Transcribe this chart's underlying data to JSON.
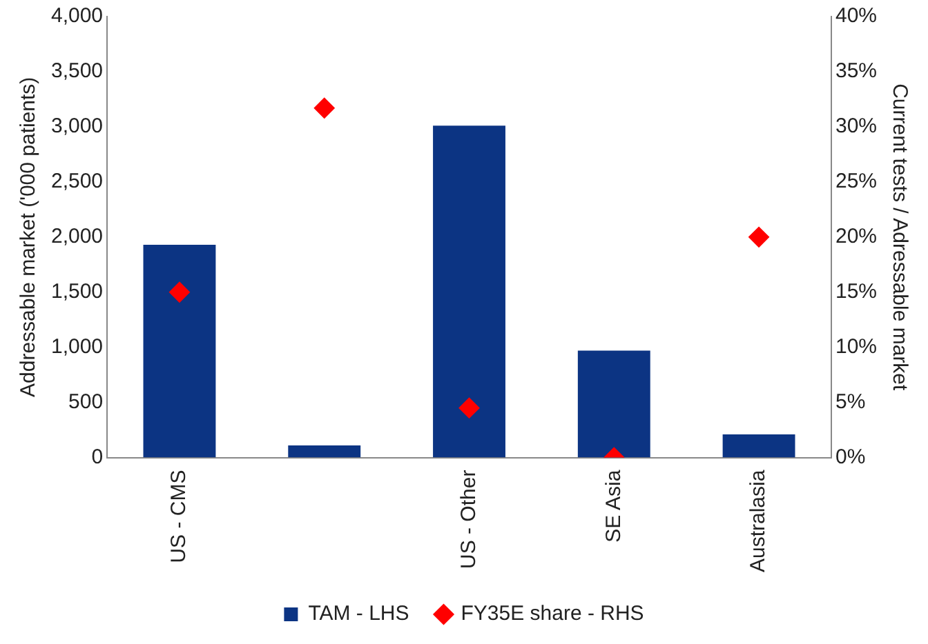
{
  "chart_data": {
    "type": "bar",
    "categories": [
      "US - CMS",
      null,
      "US - Other",
      "SE Asia",
      "Australasia"
    ],
    "ylabel": "Addressable market ('000 patients)",
    "y2label": "Current tests / Adressable market",
    "ylim": [
      0,
      4000
    ],
    "yticks": [
      0,
      {
        "value": 500,
        "label": "500"
      },
      {
        "value": 1000,
        "label": "1,000"
      },
      {
        "value": 1500,
        "label": "1,500"
      },
      {
        "value": 2000,
        "label": "2,000"
      },
      {
        "value": 2500,
        "label": "2,500"
      },
      {
        "value": 3000,
        "label": "3,000"
      },
      {
        "value": 3500,
        "label": "3,500"
      },
      {
        "value": 4000,
        "label": "4,000"
      }
    ],
    "y2lim": [
      0,
      40
    ],
    "y2ticks": [
      {
        "value": 0,
        "label": "0%"
      },
      {
        "value": 5,
        "label": "5%"
      },
      {
        "value": 10,
        "label": "10%"
      },
      {
        "value": 15,
        "label": "15%"
      },
      {
        "value": 20,
        "label": "20%"
      },
      {
        "value": 25,
        "label": "25%"
      },
      {
        "value": 30,
        "label": "30%"
      },
      {
        "value": 35,
        "label": "35%"
      },
      {
        "value": 40,
        "label": "40%"
      }
    ],
    "series": [
      {
        "name": "TAM - LHS",
        "color": "#0c3483",
        "values": [
          1930,
          110,
          3010,
          970,
          210
        ]
      },
      {
        "name": "FY35E share - RHS",
        "type": "scatter",
        "axis": "y2",
        "marker": "diamond",
        "color": "#ff0000",
        "values": [
          15,
          31.7,
          4.5,
          0,
          20
        ]
      }
    ],
    "grid": false,
    "legend": "bottom"
  }
}
